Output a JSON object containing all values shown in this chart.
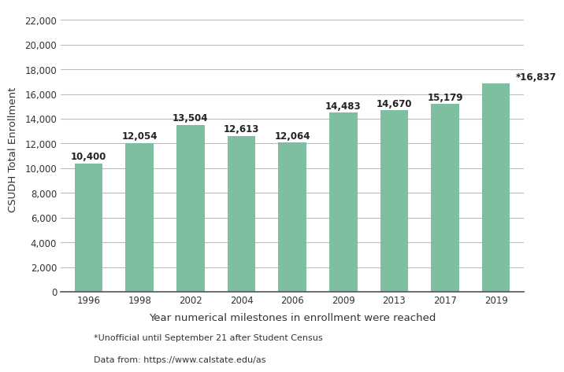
{
  "categories": [
    "1996",
    "1998",
    "2002",
    "2004",
    "2006",
    "2009",
    "2013",
    "2017",
    "2019"
  ],
  "values": [
    10400,
    12054,
    13504,
    12613,
    12064,
    14483,
    14670,
    15179,
    16837
  ],
  "bar_labels": [
    "10,400",
    "12,054",
    "13,504",
    "12,613",
    "12,064",
    "14,483",
    "14,670",
    "15,179",
    "*16,837"
  ],
  "bar_color": "#7dbfa0",
  "xlabel": "Year numerical milestones in enrollment were reached",
  "ylabel": "CSUDH Total Enrollment",
  "ylim": [
    0,
    23000
  ],
  "yticks": [
    0,
    2000,
    4000,
    6000,
    8000,
    10000,
    12000,
    14000,
    16000,
    18000,
    20000,
    22000
  ],
  "footnote1": "*Unofficial until September 21 after Student Census",
  "footnote2": "Data from: https://www.calstate.edu/as",
  "background_color": "#ffffff",
  "grid_color": "#bbbbbb",
  "label_fontsize": 8.5,
  "axis_label_fontsize": 9.5,
  "tick_fontsize": 8.5,
  "footnote_fontsize": 8
}
